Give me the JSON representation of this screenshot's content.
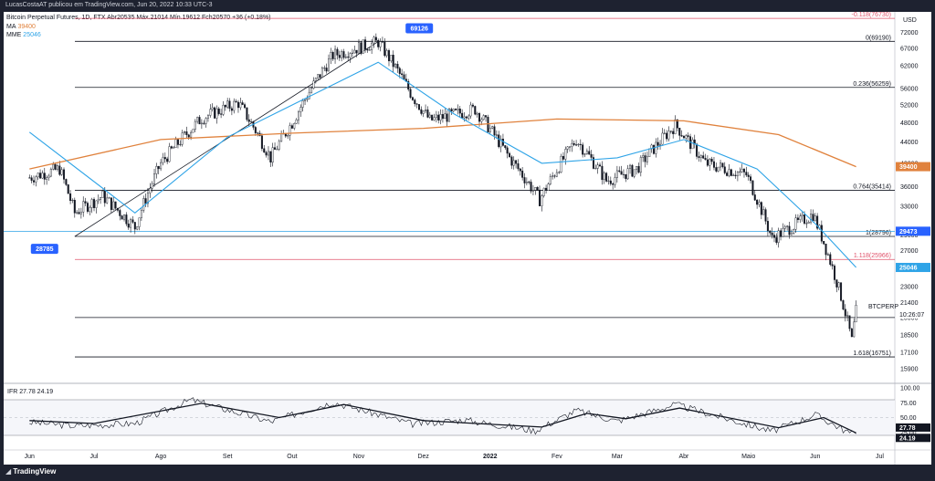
{
  "byline": "LucasCostaAT publicou em TradingView.com, Jun 20, 2022 10:33 UTC-3",
  "footer": {
    "logo_text": "TradingView",
    "logo_icon": "tradingview-logo-icon"
  },
  "legend": {
    "line1": "Bitcoin Perpetual Futures, 1D, FTX  Abr20535  Máx.21014  Mín.19612  Fch20570  +36 (+0.18%)",
    "ma_label": "MA",
    "ma_value": "39400",
    "mme_label": "MME",
    "mme_value": "25046"
  },
  "colors": {
    "price": "#131722",
    "ma": "#e0823d",
    "mme": "#2fa4e7",
    "fib": "#131722",
    "fib_ext": "#e0536b",
    "accent": "#2962ff",
    "rsi_bg": "#d1d4dc"
  },
  "chart_data": {
    "type": "candlestick",
    "currency": "USD",
    "x_ticks": [
      "Jun",
      "Jul",
      "Ago",
      "Set",
      "Out",
      "Nov",
      "Dez",
      "2022",
      "Fev",
      "Mar",
      "Abr",
      "Maio",
      "Jun",
      "Jul"
    ],
    "y_ticks": [
      15900,
      17100,
      18500,
      20000,
      21400,
      23000,
      25000,
      27000,
      29000,
      33000,
      36000,
      40000,
      44000,
      48000,
      52000,
      56000,
      62000,
      67000,
      72000
    ],
    "y_scale": "log",
    "price_path": [
      {
        "date": "2021-06-01",
        "close": 37500
      },
      {
        "date": "2021-06-15",
        "close": 39000
      },
      {
        "date": "2021-06-22",
        "close": 32000
      },
      {
        "date": "2021-07-05",
        "close": 34500
      },
      {
        "date": "2021-07-20",
        "close": 30000
      },
      {
        "date": "2021-08-01",
        "close": 40000
      },
      {
        "date": "2021-08-20",
        "close": 49000
      },
      {
        "date": "2021-09-06",
        "close": 52500
      },
      {
        "date": "2021-09-21",
        "close": 41000
      },
      {
        "date": "2021-10-01",
        "close": 48000
      },
      {
        "date": "2021-10-20",
        "close": 65000
      },
      {
        "date": "2021-11-10",
        "close": 69000
      },
      {
        "date": "2021-11-26",
        "close": 54000
      },
      {
        "date": "2021-12-04",
        "close": 48500
      },
      {
        "date": "2021-12-25",
        "close": 51000
      },
      {
        "date": "2022-01-10",
        "close": 41000
      },
      {
        "date": "2022-01-24",
        "close": 34000
      },
      {
        "date": "2022-02-10",
        "close": 44500
      },
      {
        "date": "2022-02-24",
        "close": 37000
      },
      {
        "date": "2022-03-10",
        "close": 39000
      },
      {
        "date": "2022-03-28",
        "close": 47500
      },
      {
        "date": "2022-04-11",
        "close": 40000
      },
      {
        "date": "2022-04-30",
        "close": 38000
      },
      {
        "date": "2022-05-12",
        "close": 28500
      },
      {
        "date": "2022-05-31",
        "close": 31800
      },
      {
        "date": "2022-06-13",
        "close": 22000
      },
      {
        "date": "2022-06-18",
        "close": 18000
      },
      {
        "date": "2022-06-20",
        "close": 20570
      }
    ],
    "ma": [
      {
        "date": "2021-06-01",
        "value": 39000
      },
      {
        "date": "2021-08-01",
        "value": 44500
      },
      {
        "date": "2021-10-01",
        "value": 45800
      },
      {
        "date": "2021-12-01",
        "value": 46800
      },
      {
        "date": "2022-02-01",
        "value": 48800
      },
      {
        "date": "2022-04-01",
        "value": 48400
      },
      {
        "date": "2022-05-15",
        "value": 45500
      },
      {
        "date": "2022-06-20",
        "value": 39400
      }
    ],
    "mme": [
      {
        "date": "2021-06-01",
        "value": 46000
      },
      {
        "date": "2021-07-20",
        "value": 32000
      },
      {
        "date": "2021-09-01",
        "value": 45000
      },
      {
        "date": "2021-11-10",
        "value": 63000
      },
      {
        "date": "2021-12-15",
        "value": 50000
      },
      {
        "date": "2022-01-25",
        "value": 40000
      },
      {
        "date": "2022-03-01",
        "value": 41000
      },
      {
        "date": "2022-04-01",
        "value": 44500
      },
      {
        "date": "2022-05-05",
        "value": 39000
      },
      {
        "date": "2022-06-01",
        "value": 30500
      },
      {
        "date": "2022-06-20",
        "value": 25046
      }
    ],
    "fib_levels": [
      {
        "label": "-0.118(76730)",
        "value": 76730,
        "ext": true
      },
      {
        "label": "0(69190)",
        "value": 69190
      },
      {
        "label": "0.236(56259)",
        "value": 56259
      },
      {
        "label": "0.764(35414)",
        "value": 35414
      },
      {
        "label": "1(28796)",
        "value": 28796
      },
      {
        "label": "1.118(25966)",
        "value": 25966,
        "ext": true
      },
      {
        "label": "1.618(16751)",
        "value": 16751
      }
    ],
    "extra_line": {
      "value": 20000
    },
    "trend_line": {
      "from": {
        "date": "2021-06-22",
        "value": 28785
      },
      "to": {
        "date": "2021-11-10",
        "value": 69126
      }
    },
    "callouts": [
      {
        "text": "69126",
        "value": 69126,
        "date": "2021-11-10"
      },
      {
        "text": "28785",
        "value": 28785,
        "date": "2021-06-22"
      }
    ],
    "price_tags": [
      {
        "text": "39400",
        "value": 39400,
        "style": "ma"
      },
      {
        "text": "29473",
        "value": 29473,
        "style": "accent"
      },
      {
        "text": "25046",
        "value": 25046,
        "style": "mme"
      }
    ],
    "current_price_label": "BTCPERP",
    "countdown": "10:26:07",
    "rsi": {
      "label": "IFR",
      "value": "27.78",
      "signal": "24.19",
      "y_ticks": [
        "100.00",
        "75.00",
        "50.00",
        "25.00"
      ],
      "tag_value": "27.78",
      "tag_signal": "24.19",
      "band_upper": 80,
      "band_lower": 20,
      "mid": 50,
      "rsi_path": [
        {
          "date": "2021-06-01",
          "value": 42
        },
        {
          "date": "2021-06-22",
          "value": 36
        },
        {
          "date": "2021-07-20",
          "value": 40
        },
        {
          "date": "2021-08-15",
          "value": 80
        },
        {
          "date": "2021-09-21",
          "value": 43
        },
        {
          "date": "2021-10-20",
          "value": 76
        },
        {
          "date": "2021-11-26",
          "value": 39
        },
        {
          "date": "2021-12-20",
          "value": 46
        },
        {
          "date": "2022-01-22",
          "value": 28
        },
        {
          "date": "2022-02-10",
          "value": 62
        },
        {
          "date": "2022-03-01",
          "value": 44
        },
        {
          "date": "2022-03-28",
          "value": 72
        },
        {
          "date": "2022-05-12",
          "value": 27
        },
        {
          "date": "2022-06-01",
          "value": 55
        },
        {
          "date": "2022-06-18",
          "value": 22
        },
        {
          "date": "2022-06-20",
          "value": 27.78
        }
      ],
      "signal_path": [
        {
          "date": "2021-06-01",
          "value": 45
        },
        {
          "date": "2021-07-01",
          "value": 40
        },
        {
          "date": "2021-08-20",
          "value": 74
        },
        {
          "date": "2021-09-25",
          "value": 50
        },
        {
          "date": "2021-10-25",
          "value": 72
        },
        {
          "date": "2021-12-01",
          "value": 45
        },
        {
          "date": "2022-01-25",
          "value": 34
        },
        {
          "date": "2022-02-15",
          "value": 57
        },
        {
          "date": "2022-03-05",
          "value": 48
        },
        {
          "date": "2022-03-30",
          "value": 66
        },
        {
          "date": "2022-05-15",
          "value": 33
        },
        {
          "date": "2022-06-05",
          "value": 50
        },
        {
          "date": "2022-06-20",
          "value": 24.19
        }
      ]
    }
  }
}
